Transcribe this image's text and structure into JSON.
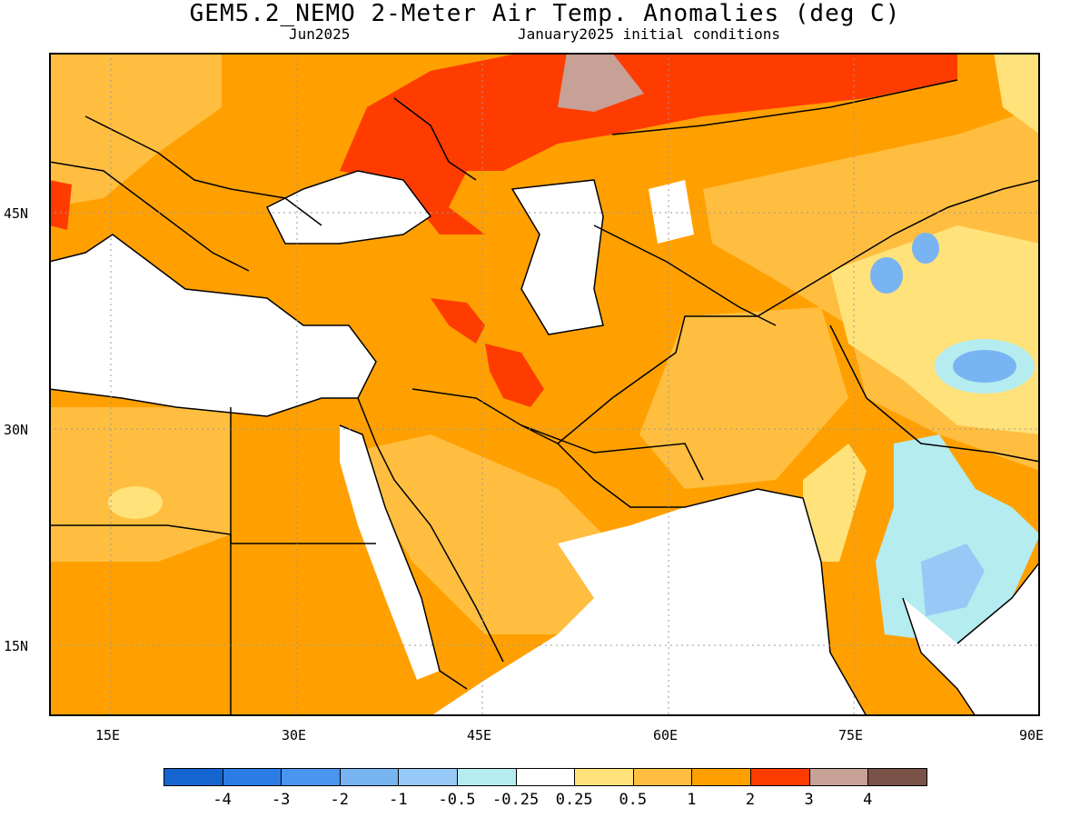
{
  "header": {
    "title": "GEM5.2_NEMO 2-Meter Air Temp. Anomalies (deg C)",
    "month": "Jun2025",
    "initial_conditions": "January2025 initial conditions"
  },
  "map": {
    "projection": "lat-lon",
    "lat_range": [
      10,
      56
    ],
    "lon_range": [
      10,
      90
    ],
    "lat_ticks": [
      "45N",
      "30N",
      "15N"
    ],
    "lon_ticks": [
      "15E",
      "30E",
      "45E",
      "60E",
      "75E",
      "90E"
    ],
    "features": {
      "positive_anomaly_hotspots": [
        "southern Russia",
        "Caspian plateau",
        "Iraq/Iran border"
      ],
      "negative_anomaly_regions": [
        "eastern India",
        "Tibetan plateau",
        "Kyrgyzstan/Tian Shan"
      ]
    }
  },
  "legend": {
    "colors": [
      "#1565d0",
      "#2c7ce6",
      "#4a95ef",
      "#78b4f2",
      "#97c9f6",
      "#b4ecf0",
      "#ffffff",
      "#ffe27a",
      "#ffbe40",
      "#ffa000",
      "#ff3c00",
      "#c7a096",
      "#7b5247"
    ],
    "labels": [
      "-4",
      "-3",
      "-2",
      "-1",
      "-0.5",
      "-0.25",
      "0.25",
      "0.5",
      "1",
      "2",
      "3",
      "4"
    ]
  }
}
